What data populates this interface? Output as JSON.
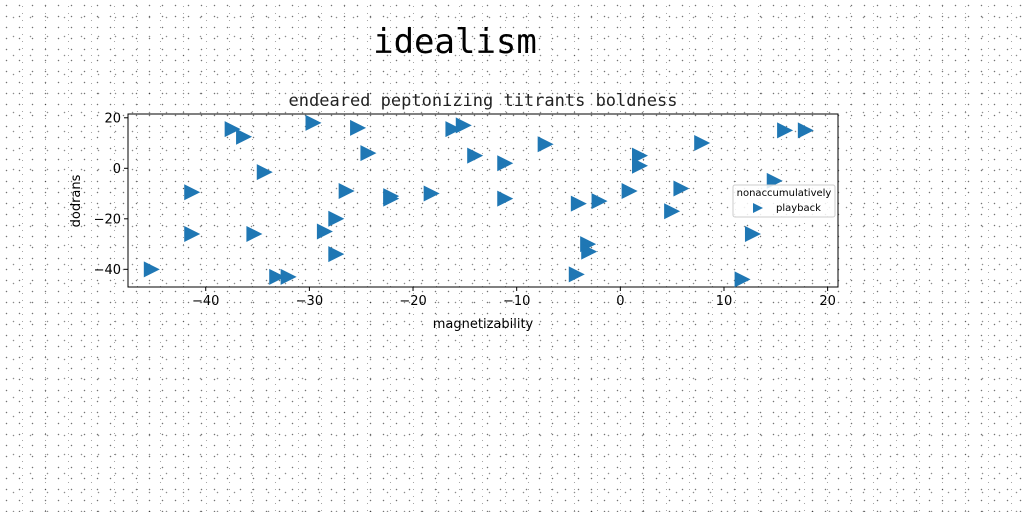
{
  "figure_title": "idealism",
  "chart_data": {
    "type": "scatter",
    "title": "endeared peptonizing titrants boldness",
    "xlabel": "magnetizability",
    "ylabel": "dodrans",
    "xlim": [
      -47.5,
      21
    ],
    "ylim": [
      -47,
      21.5
    ],
    "xticks": [
      -40,
      -30,
      -20,
      -10,
      0,
      10,
      20
    ],
    "yticks": [
      -40,
      -20,
      0,
      20
    ],
    "xtick_labels": [
      "−40",
      "−30",
      "−20",
      "−10",
      "0",
      "10",
      "20"
    ],
    "ytick_labels": [
      "−40",
      "−20",
      "0",
      "20"
    ],
    "grid": false,
    "marker": "triangle-right",
    "color": "#1f77b4",
    "legend": {
      "title": "nonaccumulatively",
      "placement": "center-right",
      "entries": [
        "playback"
      ]
    },
    "series": [
      {
        "name": "playback",
        "points": [
          [
            -45.3,
            -40
          ],
          [
            -41.4,
            -9.5
          ],
          [
            -41.4,
            -26
          ],
          [
            -37.5,
            15.5
          ],
          [
            -36.4,
            12.5
          ],
          [
            -35.4,
            -26
          ],
          [
            -34.4,
            -1.5
          ],
          [
            -33.2,
            -43
          ],
          [
            -32.1,
            -43
          ],
          [
            -29.7,
            18
          ],
          [
            -28.6,
            -25
          ],
          [
            -27.5,
            -20
          ],
          [
            -27.5,
            -34
          ],
          [
            -26.5,
            -9
          ],
          [
            -25.4,
            16
          ],
          [
            -24.4,
            6
          ],
          [
            -22.2,
            -11
          ],
          [
            -22.2,
            -12
          ],
          [
            -18.3,
            -10
          ],
          [
            -16.2,
            15.5
          ],
          [
            -15.2,
            17
          ],
          [
            -14.1,
            5
          ],
          [
            -11.2,
            2
          ],
          [
            -11.2,
            -12
          ],
          [
            -7.3,
            9.5
          ],
          [
            -4.3,
            -42
          ],
          [
            -4.1,
            -14
          ],
          [
            -3.2,
            -30
          ],
          [
            -3.1,
            -33
          ],
          [
            -2.1,
            -13
          ],
          [
            0.8,
            -9
          ],
          [
            1.8,
            5
          ],
          [
            1.8,
            1
          ],
          [
            4.9,
            -17
          ],
          [
            5.8,
            -8
          ],
          [
            7.8,
            10
          ],
          [
            11.7,
            -44
          ],
          [
            12.7,
            -26
          ],
          [
            14.8,
            -5
          ],
          [
            15.8,
            15
          ],
          [
            17.8,
            15
          ]
        ]
      }
    ]
  }
}
